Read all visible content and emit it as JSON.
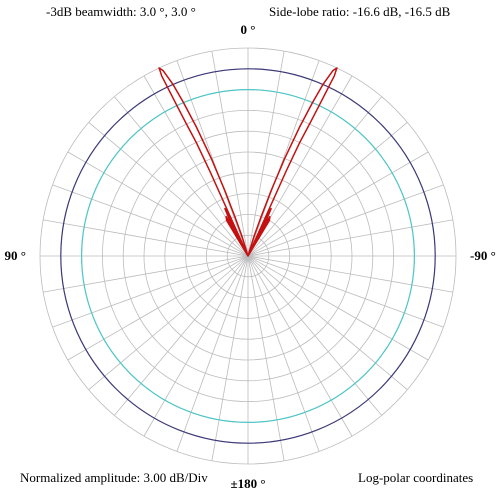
{
  "header": {
    "beamwidth": "-3dB beamwidth: 3.0 °, 3.0 °",
    "sidelobe": "Side-lobe ratio: -16.6 dB, -16.5 dB"
  },
  "footer": {
    "amplitude": "Normalized amplitude: 3.00 dB/Div",
    "coords": "Log-polar coordinates"
  },
  "colors": {
    "grid": "#bcbcbc",
    "outer_circle": "#3c3a78",
    "inner_circle": "#4fc6c6",
    "pattern": "#c41010"
  },
  "chart_data": {
    "type": "polar-line",
    "scale": "log-polar",
    "title": "",
    "angle_labels": [
      {
        "angle": 0,
        "label": "0 °"
      },
      {
        "angle": 90,
        "label": "90 °"
      },
      {
        "angle": -90,
        "label": "-90 °"
      },
      {
        "angle": 180,
        "label": "±180 °"
      }
    ],
    "radial_step_db": 3.0,
    "radial_divisions": 10,
    "angular_step_deg": 10,
    "r_range_db": [
      -30,
      0
    ],
    "reference_circles_db": [
      {
        "db": -3,
        "role": "outer"
      },
      {
        "db": -6,
        "role": "inner"
      }
    ],
    "series": [
      {
        "points": [
          {
            "angle_deg": -90,
            "db": -30
          },
          {
            "angle_deg": -35,
            "db": -30
          },
          {
            "angle_deg": -31,
            "db": -24
          },
          {
            "angle_deg": -29,
            "db": -23.5
          },
          {
            "angle_deg": -28.5,
            "db": -27
          },
          {
            "angle_deg": -28,
            "db": -30
          },
          {
            "angle_deg": -27.5,
            "db": -27
          },
          {
            "angle_deg": -27,
            "db": -24
          },
          {
            "angle_deg": -26,
            "db": -22.4
          },
          {
            "angle_deg": -25,
            "db": -22.8
          },
          {
            "angle_deg": -24.5,
            "db": -26
          },
          {
            "angle_deg": -24,
            "db": -30
          },
          {
            "angle_deg": -24.2,
            "db": -16.5
          },
          {
            "angle_deg": -24.5,
            "db": -12
          },
          {
            "angle_deg": -25,
            "db": -9
          },
          {
            "angle_deg": -25.3,
            "db": -6
          },
          {
            "angle_deg": -25.5,
            "db": -3
          },
          {
            "angle_deg": -25.6,
            "db": -1.2
          },
          {
            "angle_deg": -25.3,
            "db": 0
          },
          {
            "angle_deg": -24.6,
            "db": -0.6
          },
          {
            "angle_deg": -23.6,
            "db": -3
          },
          {
            "angle_deg": -22.8,
            "db": -6
          },
          {
            "angle_deg": -21.8,
            "db": -10
          },
          {
            "angle_deg": -20.6,
            "db": -15
          },
          {
            "angle_deg": -19.5,
            "db": -20
          },
          {
            "angle_deg": -18.5,
            "db": -24
          },
          {
            "angle_deg": -17,
            "db": -27
          },
          {
            "angle_deg": -15,
            "db": -30
          },
          {
            "angle_deg": 15,
            "db": -30
          },
          {
            "angle_deg": 17,
            "db": -27
          },
          {
            "angle_deg": 18.5,
            "db": -24
          },
          {
            "angle_deg": 19.5,
            "db": -20
          },
          {
            "angle_deg": 20.6,
            "db": -15
          },
          {
            "angle_deg": 21.8,
            "db": -10
          },
          {
            "angle_deg": 22.8,
            "db": -6
          },
          {
            "angle_deg": 23.6,
            "db": -3
          },
          {
            "angle_deg": 24.6,
            "db": -0.6
          },
          {
            "angle_deg": 25.3,
            "db": 0
          },
          {
            "angle_deg": 25.6,
            "db": -1.2
          },
          {
            "angle_deg": 25.5,
            "db": -3
          },
          {
            "angle_deg": 25.3,
            "db": -6
          },
          {
            "angle_deg": 25,
            "db": -9
          },
          {
            "angle_deg": 24.5,
            "db": -12
          },
          {
            "angle_deg": 24.2,
            "db": -16.6
          },
          {
            "angle_deg": 24,
            "db": -30
          },
          {
            "angle_deg": 24.5,
            "db": -26
          },
          {
            "angle_deg": 25,
            "db": -22.8
          },
          {
            "angle_deg": 26,
            "db": -22.4
          },
          {
            "angle_deg": 27,
            "db": -24
          },
          {
            "angle_deg": 27.5,
            "db": -27
          },
          {
            "angle_deg": 28,
            "db": -30
          },
          {
            "angle_deg": 28.5,
            "db": -27
          },
          {
            "angle_deg": 29,
            "db": -23.5
          },
          {
            "angle_deg": 31,
            "db": -24
          },
          {
            "angle_deg": 35,
            "db": -30
          },
          {
            "angle_deg": 90,
            "db": -30
          }
        ]
      }
    ]
  }
}
